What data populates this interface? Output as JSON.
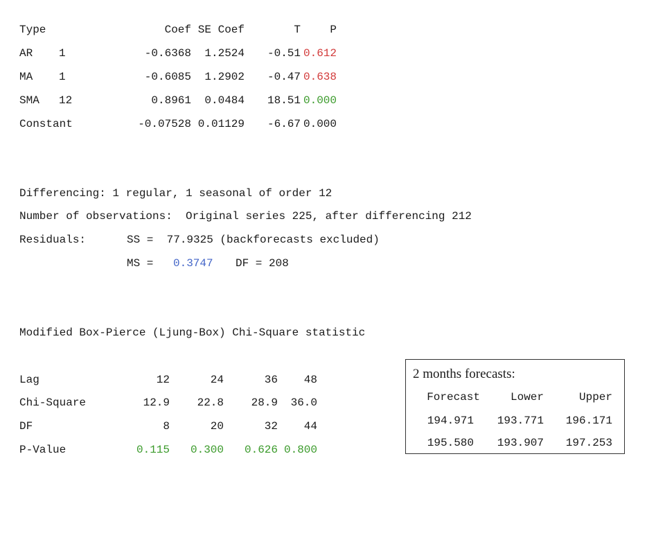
{
  "coef_table": {
    "headers": [
      "Type",
      "Coef",
      "SE Coef",
      "T",
      "P"
    ],
    "rows": [
      {
        "type": "AR",
        "lag": "1",
        "coef": "-0.6368",
        "se": "1.2524",
        "t": "-0.51",
        "p": "0.612"
      },
      {
        "type": "MA",
        "lag": "1",
        "coef": "-0.6085",
        "se": "1.2902",
        "t": "-0.47",
        "p": "0.638"
      },
      {
        "type": "SMA",
        "lag": "12",
        "coef": "0.8961",
        "se": "0.0484",
        "t": "18.51",
        "p": "0.000"
      },
      {
        "type": "Constant",
        "lag": "",
        "coef": "-0.07528",
        "se": "0.01129",
        "t": "-6.67",
        "p": "0.000"
      }
    ]
  },
  "summary": {
    "differencing": "Differencing: 1 regular, 1 seasonal of order 12",
    "observations": "Number of observations:  Original series 225, after differencing 212",
    "residuals_label": "Residuals:",
    "ss_text": "SS =  77.9325 (backforecasts excluded)",
    "ms_label": "MS =",
    "ms_value": "0.3747",
    "df_text": "DF = 208"
  },
  "ljung_box": {
    "title": "Modified Box-Pierce (Ljung-Box) Chi-Square statistic",
    "rows": [
      {
        "label": "Lag",
        "values": [
          "12",
          "24",
          "36",
          "48"
        ]
      },
      {
        "label": "Chi-Square",
        "values": [
          "12.9",
          "22.8",
          "28.9",
          "36.0"
        ]
      },
      {
        "label": "DF",
        "values": [
          "8",
          "20",
          "32",
          "44"
        ]
      },
      {
        "label": "P-Value",
        "values": [
          "0.115",
          "0.300",
          "0.626",
          "0.800"
        ]
      }
    ]
  },
  "forecast": {
    "title": "2 months forecasts:",
    "headers": [
      "Forecast",
      "Lower",
      "Upper"
    ],
    "rows": [
      [
        "194.971",
        "193.771",
        "196.171"
      ],
      [
        "195.580",
        "193.907",
        "197.253"
      ]
    ]
  },
  "colors": {
    "red": "#d23a3a",
    "green": "#3a9a2a",
    "blue": "#4466c8"
  }
}
